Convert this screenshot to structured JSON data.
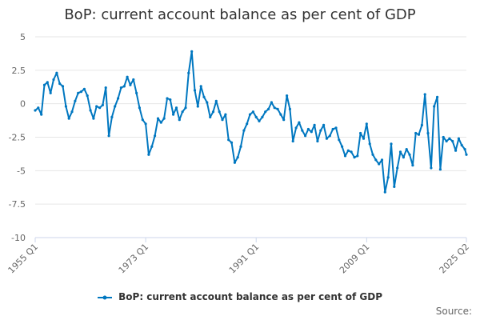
{
  "chart_data": {
    "type": "line",
    "title": "BoP: current account balance as per cent of GDP",
    "xlabel": "",
    "ylabel": "",
    "x_tick_labels": [
      "1955 Q1",
      "1973 Q1",
      "1991 Q1",
      "2009 Q1",
      "2025 Q2"
    ],
    "x_range": [
      1955.0,
      2025.25
    ],
    "ylim": [
      -10,
      5
    ],
    "y_ticks": [
      5,
      2.5,
      0,
      -2.5,
      -5,
      -7.5,
      -10
    ],
    "y_tick_labels": [
      "5",
      "2.5",
      "0",
      "-2.5",
      "-5",
      "-7.5",
      "-10"
    ],
    "grid": "horizontal",
    "legend_position": "bottom",
    "source_label": "Source:",
    "series": [
      {
        "name": "BoP: current account balance as per cent of GDP",
        "color": "#0077c0",
        "x": [
          1955.0,
          1955.5,
          1956.0,
          1956.5,
          1957.0,
          1957.5,
          1958.0,
          1958.5,
          1959.0,
          1959.5,
          1960.0,
          1960.5,
          1961.0,
          1961.5,
          1962.0,
          1962.5,
          1963.0,
          1963.5,
          1964.0,
          1964.5,
          1965.0,
          1965.5,
          1966.0,
          1966.5,
          1967.0,
          1967.5,
          1968.0,
          1968.5,
          1969.0,
          1969.5,
          1970.0,
          1970.5,
          1971.0,
          1971.5,
          1972.0,
          1972.5,
          1973.0,
          1973.5,
          1974.0,
          1974.5,
          1975.0,
          1975.5,
          1976.0,
          1976.5,
          1977.0,
          1977.5,
          1978.0,
          1978.5,
          1979.0,
          1979.5,
          1980.0,
          1980.5,
          1981.0,
          1981.5,
          1982.0,
          1982.5,
          1983.0,
          1983.5,
          1984.0,
          1984.5,
          1985.0,
          1985.5,
          1986.0,
          1986.5,
          1987.0,
          1987.5,
          1988.0,
          1988.5,
          1989.0,
          1989.5,
          1990.0,
          1990.5,
          1991.0,
          1991.5,
          1992.0,
          1992.5,
          1993.0,
          1993.5,
          1994.0,
          1994.5,
          1995.0,
          1995.5,
          1996.0,
          1996.5,
          1997.0,
          1997.5,
          1998.0,
          1998.5,
          1999.0,
          1999.5,
          2000.0,
          2000.5,
          2001.0,
          2001.5,
          2002.0,
          2002.5,
          2003.0,
          2003.5,
          2004.0,
          2004.5,
          2005.0,
          2005.5,
          2006.0,
          2006.5,
          2007.0,
          2007.5,
          2008.0,
          2008.5,
          2009.0,
          2009.5,
          2010.0,
          2010.5,
          2011.0,
          2011.5,
          2012.0,
          2012.5,
          2013.0,
          2013.5,
          2014.0,
          2014.5,
          2015.0,
          2015.5,
          2016.0,
          2016.5,
          2017.0,
          2017.5,
          2018.0,
          2018.5,
          2019.0,
          2019.5,
          2020.0,
          2020.5,
          2021.0,
          2021.5,
          2022.0,
          2022.5,
          2023.0,
          2023.5,
          2024.0,
          2024.5,
          2025.0,
          2025.25
        ],
        "y": [
          -0.5,
          -0.3,
          -0.8,
          1.4,
          1.6,
          0.8,
          1.8,
          2.3,
          1.5,
          1.3,
          -0.2,
          -1.1,
          -0.6,
          0.2,
          0.8,
          0.9,
          1.1,
          0.6,
          -0.5,
          -1.1,
          -0.2,
          -0.3,
          -0.1,
          1.2,
          -2.4,
          -1.0,
          -0.2,
          0.4,
          1.2,
          1.3,
          2.0,
          1.4,
          1.8,
          0.8,
          -0.3,
          -1.2,
          -1.5,
          -3.8,
          -3.2,
          -2.4,
          -1.1,
          -1.4,
          -1.1,
          0.4,
          0.3,
          -0.8,
          -0.3,
          -1.2,
          -0.6,
          -0.3,
          2.3,
          3.9,
          1.0,
          -0.2,
          1.3,
          0.5,
          0.1,
          -1.0,
          -0.6,
          0.2,
          -0.6,
          -1.2,
          -0.8,
          -2.7,
          -2.9,
          -4.4,
          -4.0,
          -3.2,
          -2.0,
          -1.5,
          -0.8,
          -0.6,
          -1.0,
          -1.3,
          -1.0,
          -0.6,
          -0.4,
          0.1,
          -0.3,
          -0.4,
          -0.8,
          -1.2,
          0.6,
          -0.4,
          -2.8,
          -1.8,
          -1.4,
          -2.0,
          -2.4,
          -1.9,
          -2.1,
          -1.6,
          -2.8,
          -2.0,
          -1.6,
          -2.6,
          -2.4,
          -1.9,
          -1.8,
          -2.7,
          -3.2,
          -3.9,
          -3.5,
          -3.6,
          -4.0,
          -3.9,
          -2.2,
          -2.6,
          -1.5,
          -3.0,
          -3.8,
          -4.2,
          -4.5,
          -4.2,
          -6.6,
          -5.5,
          -3.0,
          -6.2,
          -4.8,
          -3.6,
          -4.0,
          -3.4,
          -3.8,
          -4.6,
          -2.2,
          -2.3,
          -1.6,
          0.7,
          -2.2,
          -4.8,
          -0.2,
          0.5,
          -4.9,
          -2.5,
          -2.8,
          -2.6,
          -2.8,
          -3.5,
          -2.6,
          -3.1,
          -3.4,
          -3.8
        ]
      }
    ]
  }
}
